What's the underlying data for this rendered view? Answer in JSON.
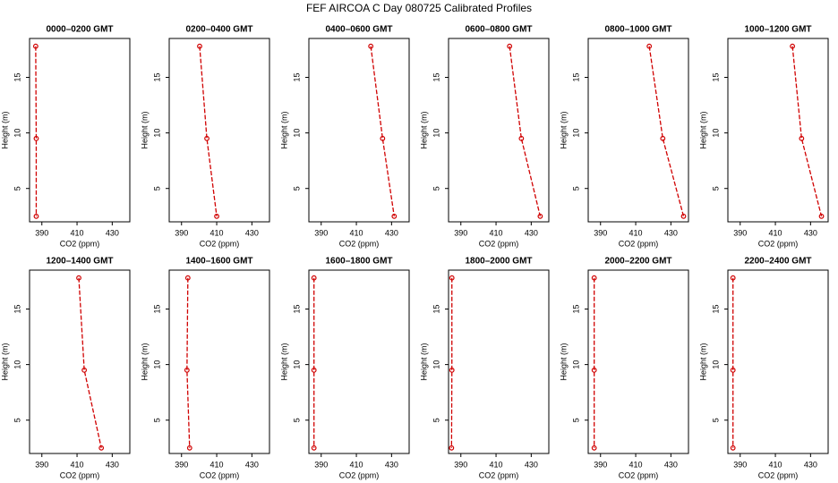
{
  "title": "FEF AIRCOA C  Day 080725  Calibrated Profiles",
  "chart_data": [
    {
      "type": "line",
      "title": "0000–0200 GMT",
      "xlabel": "CO2 (ppm)",
      "ylabel": "Height (m)",
      "color": "#d00000",
      "heights": [
        17.8,
        9.5,
        2.5
      ],
      "values": [
        386.5,
        386.8,
        386.8
      ],
      "xlim": [
        383,
        440
      ],
      "ylim": [
        2,
        18.5
      ],
      "xticks": [
        390,
        410,
        430
      ],
      "yticks": [
        5,
        10,
        15
      ]
    },
    {
      "type": "line",
      "title": "0200–0400 GMT",
      "xlabel": "CO2 (ppm)",
      "ylabel": "Height (m)",
      "color": "#d00000",
      "heights": [
        17.8,
        9.5,
        2.5
      ],
      "values": [
        400.3,
        404.4,
        410
      ],
      "xlim": [
        383,
        440
      ],
      "ylim": [
        2,
        18.5
      ],
      "xticks": [
        390,
        410,
        430
      ],
      "yticks": [
        5,
        10,
        15
      ]
    },
    {
      "type": "line",
      "title": "0400–0600 GMT",
      "xlabel": "CO2 (ppm)",
      "ylabel": "Height (m)",
      "color": "#d00000",
      "heights": [
        17.8,
        9.5,
        2.5
      ],
      "values": [
        418.2,
        424.9,
        431.5
      ],
      "xlim": [
        383,
        440
      ],
      "ylim": [
        2,
        18.5
      ],
      "xticks": [
        390,
        410,
        430
      ],
      "yticks": [
        5,
        10,
        15
      ]
    },
    {
      "type": "line",
      "title": "0600–0800 GMT",
      "xlabel": "CO2 (ppm)",
      "ylabel": "Height (m)",
      "color": "#d00000",
      "heights": [
        17.8,
        9.5,
        2.5
      ],
      "values": [
        417.7,
        424.4,
        435.1
      ],
      "xlim": [
        383,
        440
      ],
      "ylim": [
        2,
        18.5
      ],
      "xticks": [
        390,
        410,
        430
      ],
      "yticks": [
        5,
        10,
        15
      ]
    },
    {
      "type": "line",
      "title": "0800–1000 GMT",
      "xlabel": "CO2 (ppm)",
      "ylabel": "Height (m)",
      "color": "#d00000",
      "heights": [
        17.8,
        9.5,
        2.5
      ],
      "values": [
        417.7,
        425.4,
        437.2
      ],
      "xlim": [
        383,
        440
      ],
      "ylim": [
        2,
        18.5
      ],
      "xticks": [
        390,
        410,
        430
      ],
      "yticks": [
        5,
        10,
        15
      ]
    },
    {
      "type": "line",
      "title": "1000–1200 GMT",
      "xlabel": "CO2 (ppm)",
      "ylabel": "Height (m)",
      "color": "#d00000",
      "heights": [
        17.8,
        9.5,
        2.5
      ],
      "values": [
        419.7,
        424.9,
        436.2
      ],
      "xlim": [
        383,
        440
      ],
      "ylim": [
        2,
        18.5
      ],
      "xticks": [
        390,
        410,
        430
      ],
      "yticks": [
        5,
        10,
        15
      ]
    },
    {
      "type": "line",
      "title": "1200–1400 GMT",
      "xlabel": "CO2 (ppm)",
      "ylabel": "Height (m)",
      "color": "#d00000",
      "heights": [
        17.8,
        9.5,
        2.5
      ],
      "values": [
        411,
        414.1,
        423.8
      ],
      "xlim": [
        383,
        440
      ],
      "ylim": [
        2,
        18.5
      ],
      "xticks": [
        390,
        410,
        430
      ],
      "yticks": [
        5,
        10,
        15
      ]
    },
    {
      "type": "line",
      "title": "1400–1600 GMT",
      "xlabel": "CO2 (ppm)",
      "ylabel": "Height (m)",
      "color": "#d00000",
      "heights": [
        17.8,
        9.5,
        2.5
      ],
      "values": [
        393.6,
        393.1,
        394.6
      ],
      "xlim": [
        383,
        440
      ],
      "ylim": [
        2,
        18.5
      ],
      "xticks": [
        390,
        410,
        430
      ],
      "yticks": [
        5,
        10,
        15
      ]
    },
    {
      "type": "line",
      "title": "1600–1800 GMT",
      "xlabel": "CO2 (ppm)",
      "ylabel": "Height (m)",
      "color": "#d00000",
      "heights": [
        17.8,
        9.5,
        2.5
      ],
      "values": [
        385.9,
        385.9,
        385.9
      ],
      "xlim": [
        383,
        440
      ],
      "ylim": [
        2,
        18.5
      ],
      "xticks": [
        390,
        410,
        430
      ],
      "yticks": [
        5,
        10,
        15
      ]
    },
    {
      "type": "line",
      "title": "1800–2000 GMT",
      "xlabel": "CO2 (ppm)",
      "ylabel": "Height (m)",
      "color": "#d00000",
      "heights": [
        17.8,
        9.5,
        2.5
      ],
      "values": [
        384.9,
        384.9,
        384.7
      ],
      "xlim": [
        383,
        440
      ],
      "ylim": [
        2,
        18.5
      ],
      "xticks": [
        390,
        410,
        430
      ],
      "yticks": [
        5,
        10,
        15
      ]
    },
    {
      "type": "line",
      "title": "2000–2200 GMT",
      "xlabel": "CO2 (ppm)",
      "ylabel": "Height (m)",
      "color": "#d00000",
      "heights": [
        17.8,
        9.5,
        2.5
      ],
      "values": [
        386.4,
        386.4,
        386.4
      ],
      "xlim": [
        383,
        440
      ],
      "ylim": [
        2,
        18.5
      ],
      "xticks": [
        390,
        410,
        430
      ],
      "yticks": [
        5,
        10,
        15
      ]
    },
    {
      "type": "line",
      "title": "2200–2400 GMT",
      "xlabel": "CO2 (ppm)",
      "ylabel": "Height (m)",
      "color": "#d00000",
      "heights": [
        17.8,
        9.5,
        2.5
      ],
      "values": [
        385.9,
        385.9,
        385.9
      ],
      "xlim": [
        383,
        440
      ],
      "ylim": [
        2,
        18.5
      ],
      "xticks": [
        390,
        410,
        430
      ],
      "yticks": [
        5,
        10,
        15
      ]
    }
  ]
}
